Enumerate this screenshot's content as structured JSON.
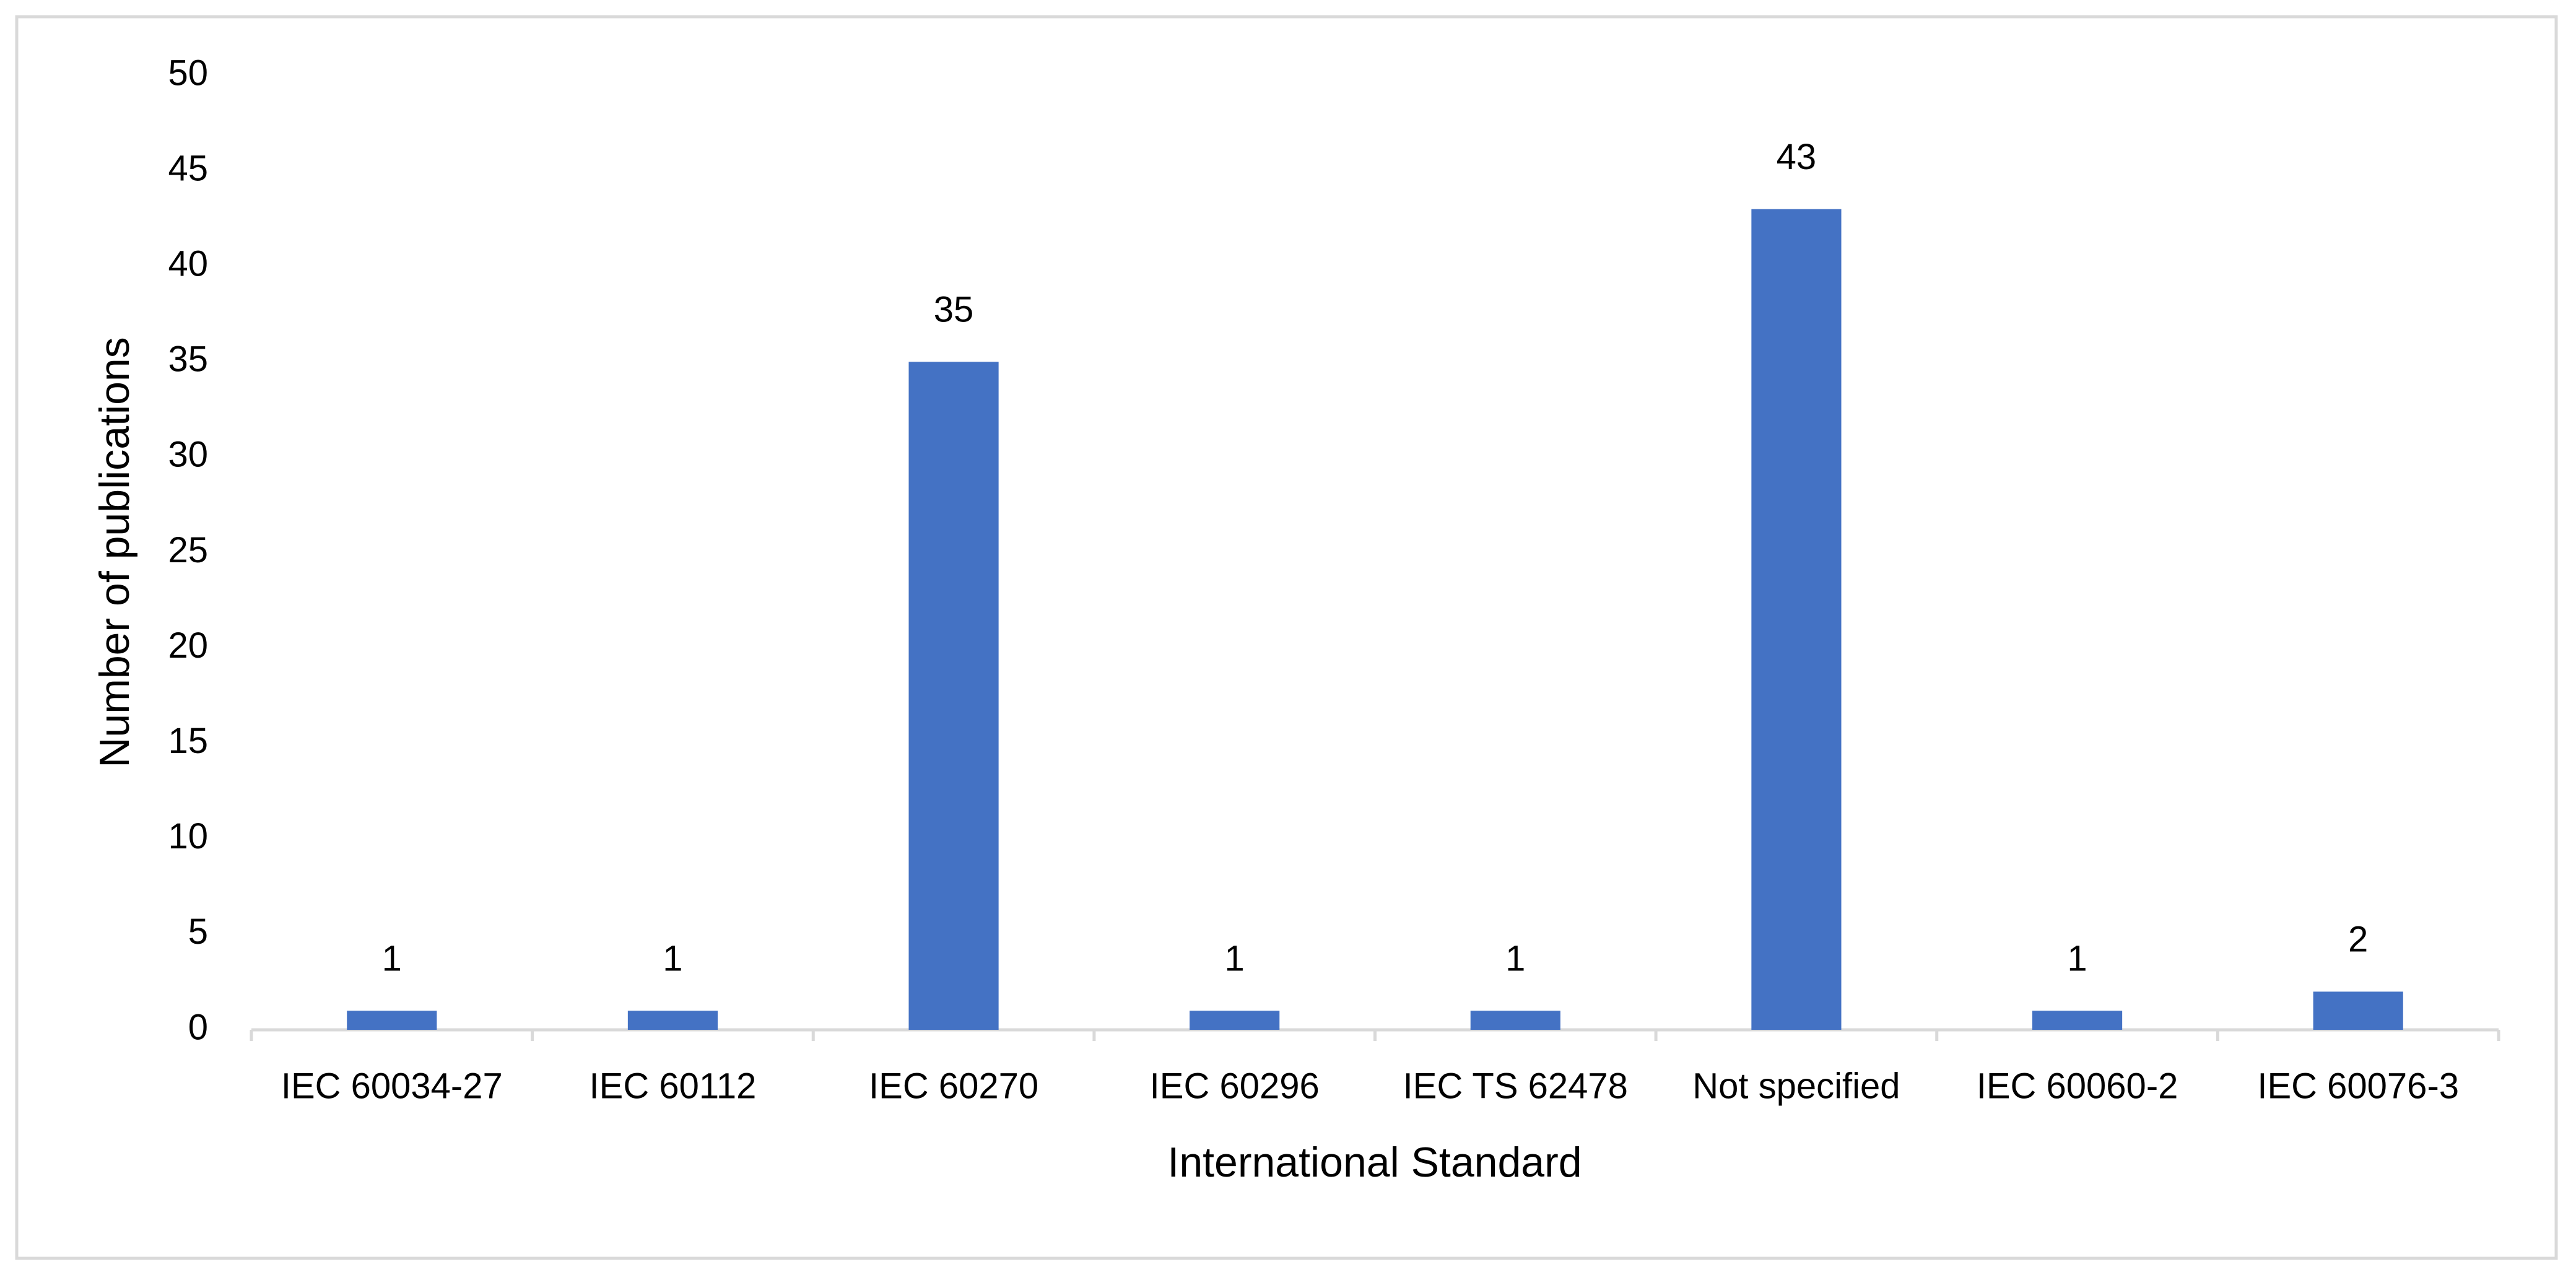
{
  "chart_data": {
    "type": "bar",
    "x_label": "International Standard",
    "y_label": "Number of publications",
    "categories": [
      "IEC 60034-27",
      "IEC 60112",
      "IEC 60270",
      "IEC 60296",
      "IEC TS 62478",
      "Not specified",
      "IEC 60060-2",
      "IEC 60076-3"
    ],
    "values": [
      1,
      1,
      35,
      1,
      1,
      43,
      1,
      2
    ],
    "color": "#4472c4",
    "ylim": [
      0,
      50
    ],
    "yticks": [
      0,
      5,
      10,
      15,
      20,
      25,
      30,
      35,
      40,
      45,
      50
    ],
    "grid": false,
    "data_labels": true
  }
}
